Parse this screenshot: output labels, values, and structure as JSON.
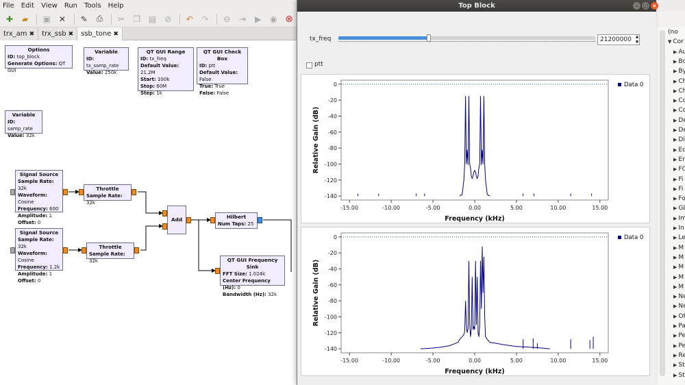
{
  "menubar": [
    "File",
    "Edit",
    "View",
    "Run",
    "Tools",
    "Help"
  ],
  "toolbar": {
    "icons": [
      "new-icon",
      "open-icon",
      "save-icon",
      "close-icon",
      "edit-icon",
      "print-icon",
      "cut-icon",
      "copy-icon",
      "paste-icon",
      "delete-icon",
      "undo-icon",
      "redo-icon",
      "disable-icon",
      "bypass-icon",
      "enable-icon",
      "generate-icon",
      "execute-icon",
      "kill-icon"
    ]
  },
  "tabs": [
    {
      "label": "trx_am",
      "close": "✖"
    },
    {
      "label": "trx_ssb",
      "close": "✖"
    },
    {
      "label": "ssb_tone",
      "close": "✖"
    }
  ],
  "blocks": {
    "options": {
      "title": "Options",
      "lines": [
        [
          "ID:",
          "top_block"
        ],
        [
          "Generate Options:",
          "QT GUI"
        ]
      ]
    },
    "var1": {
      "title": "Variable",
      "lines": [
        [
          "ID:",
          "tx_samp_rate"
        ],
        [
          "Value:",
          "250k"
        ]
      ]
    },
    "range": {
      "title": "QT GUI Range",
      "lines": [
        [
          "ID:",
          "tx_freq"
        ],
        [
          "Default Value:",
          "21.2M"
        ],
        [
          "Start:",
          "100k"
        ],
        [
          "Stop:",
          "60M"
        ],
        [
          "Step:",
          "1k"
        ]
      ]
    },
    "check": {
      "title": "QT GUI Check Box",
      "lines": [
        [
          "ID:",
          "ptt"
        ],
        [
          "Default Value:",
          "False"
        ],
        [
          "True:",
          "True"
        ],
        [
          "False:",
          "False"
        ]
      ]
    },
    "var2": {
      "title": "Variable",
      "lines": [
        [
          "ID:",
          "samp_rate"
        ],
        [
          "Value:",
          "32k"
        ]
      ]
    },
    "sig1": {
      "title": "Signal Source",
      "lines": [
        [
          "Sample Rate:",
          "32k"
        ],
        [
          "Waveform:",
          "Cosine"
        ],
        [
          "Frequency:",
          "600"
        ],
        [
          "Amplitude:",
          "1"
        ],
        [
          "Offset:",
          "0"
        ]
      ]
    },
    "sig2": {
      "title": "Signal Source",
      "lines": [
        [
          "Sample Rate:",
          "32k"
        ],
        [
          "Waveform:",
          "Cosine"
        ],
        [
          "Frequency:",
          "1.2k"
        ],
        [
          "Amplitude:",
          "1"
        ],
        [
          "Offset:",
          "0"
        ]
      ]
    },
    "thr1": {
      "title": "Throttle",
      "lines": [
        [
          "Sample Rate:",
          "32k"
        ]
      ]
    },
    "thr2": {
      "title": "Throttle",
      "lines": [
        [
          "Sample Rate:",
          "32k"
        ]
      ]
    },
    "add": {
      "title": "Add",
      "lines": []
    },
    "hilbert": {
      "title": "Hilbert",
      "lines": [
        [
          "Num Taps:",
          "25"
        ]
      ]
    },
    "fsink": {
      "title": "QT GUI Frequency Sink",
      "lines": [
        [
          "FFT Size:",
          "1.024k"
        ],
        [
          "Center Frequency (Hz):",
          "0"
        ],
        [
          "Bandwidth (Hz):",
          "32k"
        ]
      ]
    }
  },
  "right_panel": {
    "items": [
      {
        "label": "(no",
        "arrow": ""
      },
      {
        "label": "Cor",
        "arrow": "▼"
      },
      {
        "label": "Au",
        "arrow": "▶"
      },
      {
        "label": "Bo",
        "arrow": "▶"
      },
      {
        "label": "By",
        "arrow": "▶"
      },
      {
        "label": "Ch",
        "arrow": "▶"
      },
      {
        "label": "Ch",
        "arrow": "▶"
      },
      {
        "label": "Co",
        "arrow": "▶"
      },
      {
        "label": "Co",
        "arrow": "▶"
      },
      {
        "label": "De",
        "arrow": "▶"
      },
      {
        "label": "De",
        "arrow": "▶"
      },
      {
        "label": "Di",
        "arrow": "▶"
      },
      {
        "label": "Eq",
        "arrow": "▶"
      },
      {
        "label": "Er",
        "arrow": "▶"
      },
      {
        "label": "FC",
        "arrow": "▶"
      },
      {
        "label": "Fi",
        "arrow": "▶"
      },
      {
        "label": "Fi",
        "arrow": "▶"
      },
      {
        "label": "Fo",
        "arrow": "▶"
      },
      {
        "label": "GL",
        "arrow": "▶"
      },
      {
        "label": "Im",
        "arrow": "▶"
      },
      {
        "label": "In",
        "arrow": "▶"
      },
      {
        "label": "Le",
        "arrow": "▶"
      },
      {
        "label": "M",
        "arrow": "▶"
      },
      {
        "label": "M",
        "arrow": "▶"
      },
      {
        "label": "M",
        "arrow": "▶"
      },
      {
        "label": "M",
        "arrow": "▶"
      },
      {
        "label": "M",
        "arrow": "▶"
      },
      {
        "label": "Ne",
        "arrow": "▶"
      },
      {
        "label": "Ne",
        "arrow": "▶"
      },
      {
        "label": "OF",
        "arrow": "▶"
      },
      {
        "label": "Pa",
        "arrow": "▶"
      },
      {
        "label": "Pe",
        "arrow": "▶"
      },
      {
        "label": "Pe",
        "arrow": "▶"
      },
      {
        "label": "Re",
        "arrow": "▶"
      },
      {
        "label": "St",
        "arrow": "▶"
      },
      {
        "label": "St",
        "arrow": "▶"
      }
    ]
  },
  "top_block": {
    "title": "Top Block",
    "tx_freq_label": "tx_freq",
    "tx_freq_value": "21200000",
    "slider_fraction": 0.353,
    "ptt_label": "ptt",
    "ptt_checked": false
  },
  "chart_data": [
    {
      "type": "line",
      "xlabel": "Frequency (kHz)",
      "ylabel": "Relative Gain (dB)",
      "xlim": [
        -16,
        16
      ],
      "ylim": [
        -145,
        5
      ],
      "xticks": [
        "-15.00",
        "-10.00",
        "-5.00",
        "0.00",
        "5.00",
        "10.00",
        "15.00"
      ],
      "yticks": [
        "0",
        "-20",
        "-40",
        "-60",
        "-80",
        "-100",
        "-120",
        "-140"
      ],
      "legend": "top-right",
      "series": [
        {
          "name": "Data 0",
          "color": "#00008b",
          "x": [
            -1.8,
            -1.5,
            -1.3,
            -1.2,
            -1.1,
            -1.0,
            -0.9,
            -0.8,
            -0.7,
            -0.6,
            -0.5,
            -0.4,
            -0.3,
            -0.2,
            -0.1,
            0.0,
            0.1,
            0.2,
            0.3,
            0.4,
            0.5,
            0.6,
            0.7,
            0.8,
            0.9,
            1.0,
            1.1,
            1.2,
            1.3,
            1.5,
            1.8
          ],
          "y": [
            -140,
            -138,
            -120,
            -100,
            -15,
            -100,
            -82,
            -101,
            -15,
            -100,
            -105,
            -115,
            -118,
            -115,
            -110,
            -108,
            -110,
            -115,
            -118,
            -115,
            -105,
            -100,
            -15,
            -101,
            -82,
            -100,
            -15,
            -100,
            -120,
            -138,
            -140
          ]
        }
      ],
      "spikes": [
        [
          -14.0,
          -137
        ],
        [
          -11.5,
          -137
        ],
        [
          -7.0,
          -137
        ],
        [
          -6.0,
          -137
        ],
        [
          5.8,
          -137
        ],
        [
          7.1,
          -137
        ],
        [
          11.5,
          -137
        ],
        [
          14.0,
          -137
        ]
      ],
      "reference_y": 0
    },
    {
      "type": "line",
      "xlabel": "Frequency (kHz)",
      "ylabel": "Relative Gain (dB)",
      "xlim": [
        -16,
        16
      ],
      "ylim": [
        -145,
        5
      ],
      "xticks": [
        "-15.00",
        "-10.00",
        "-5.00",
        "0.00",
        "5.00",
        "10.00",
        "15.00"
      ],
      "yticks": [
        "0",
        "-20",
        "-40",
        "-60",
        "-80",
        "-100",
        "-120",
        "-140"
      ],
      "legend": "top-right",
      "series": [
        {
          "name": "Data 0",
          "color": "#00008b",
          "x": [
            -6.5,
            -5.0,
            -4.0,
            -3.0,
            -2.5,
            -2.0,
            -1.8,
            -1.5,
            -1.3,
            -1.2,
            -1.1,
            -1.0,
            -0.9,
            -0.8,
            -0.7,
            -0.6,
            -0.5,
            -0.4,
            -0.3,
            -0.2,
            -0.1,
            0.0,
            0.1,
            0.2,
            0.3,
            0.4,
            0.5,
            0.6,
            0.7,
            0.8,
            0.9,
            1.0,
            1.1,
            1.2,
            1.3,
            1.5,
            1.8,
            2.5,
            3.5,
            5.0,
            6.5,
            8.0,
            9.0
          ],
          "y": [
            -140,
            -139,
            -138,
            -136,
            -134,
            -132,
            -128,
            -125,
            -122,
            -118,
            -80,
            -110,
            -120,
            -115,
            -30,
            -110,
            -125,
            -115,
            -50,
            -116,
            -112,
            -116,
            -30,
            -110,
            -50,
            -120,
            -125,
            -110,
            -30,
            -90,
            -12,
            -70,
            -25,
            -100,
            -125,
            -128,
            -132,
            -133,
            -135,
            -137,
            -138,
            -139,
            -140
          ]
        }
      ],
      "spikes": [
        [
          5.8,
          -128
        ],
        [
          7.0,
          -127
        ],
        [
          7.5,
          -133
        ],
        [
          11.5,
          -128
        ],
        [
          13.8,
          -129
        ],
        [
          14.2,
          -125
        ],
        [
          12.5,
          -140
        ]
      ],
      "reference_y": 0
    }
  ]
}
